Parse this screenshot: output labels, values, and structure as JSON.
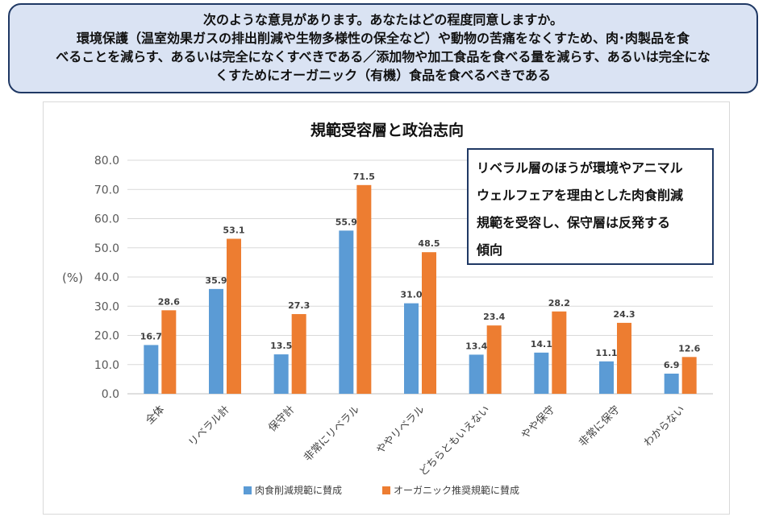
{
  "question": {
    "line1": "次のような意見があります。あなたはどの程度同意しますか。",
    "line2": "環境保護（温室効果ガスの排出削減や生物多様性の保全など）や動物の苦痛をなくすため、肉･肉製品を食",
    "line3": "べることを減らす、あるいは完全になくすべきである／添加物や加工食品を食べる量を減らす、あるいは完全にな",
    "line4": "くすためにオーガニック（有機）食品を食べるべきである"
  },
  "callout": {
    "line1": "リベラル層のほうが環境やアニマル",
    "line2": "ウェルフェアを理由とした肉食削減",
    "line3": "規範を受容し、保守層は反発する",
    "line4": "傾向"
  },
  "colors": {
    "series1": "#5b9bd5",
    "series2": "#ed7d31"
  },
  "chart_data": {
    "type": "bar",
    "title": "規範受容層と政治志向",
    "ylabel": "(%)",
    "xlabel": "",
    "ylim": [
      0,
      80
    ],
    "yticks": [
      "0.0",
      "10.0",
      "20.0",
      "30.0",
      "40.0",
      "50.0",
      "60.0",
      "70.0",
      "80.0"
    ],
    "grid": true,
    "legend_position": "bottom",
    "categories": [
      "全体",
      "リベラル計",
      "保守計",
      "非常にリベラル",
      "ややリベラル",
      "どちらともいえない",
      "やや保守",
      "非常に保守",
      "わからない"
    ],
    "series": [
      {
        "name": "肉食削減規範に賛成",
        "values": [
          16.7,
          35.9,
          13.5,
          55.9,
          31.0,
          13.4,
          14.1,
          11.1,
          6.9
        ]
      },
      {
        "name": "オーガニック推奨規範に賛成",
        "values": [
          28.6,
          53.1,
          27.3,
          71.5,
          48.5,
          23.4,
          28.2,
          24.3,
          12.6
        ]
      }
    ]
  }
}
